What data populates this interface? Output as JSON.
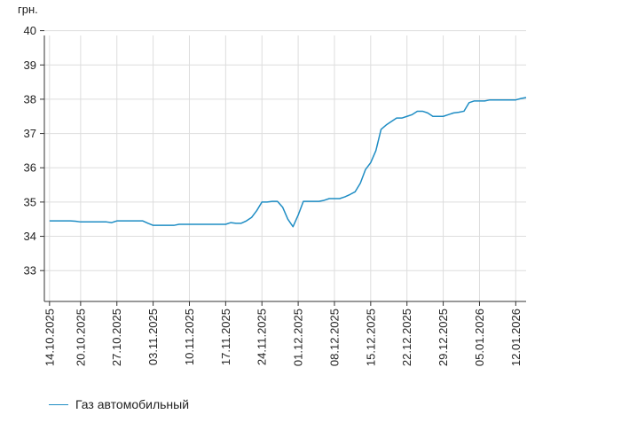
{
  "chart_data": {
    "type": "line",
    "unit_label": "грн.",
    "y_ticks": [
      33,
      34,
      35,
      36,
      37,
      38,
      39,
      40
    ],
    "ylim": [
      32.1,
      40.3
    ],
    "x_ticks": [
      "14.10.2025",
      "20.10.2025",
      "27.10.2025",
      "03.11.2025",
      "10.11.2025",
      "17.11.2025",
      "24.11.2025",
      "01.12.2025",
      "08.12.2025",
      "15.12.2025",
      "22.12.2025",
      "29.12.2025",
      "05.01.2026",
      "12.01.2026"
    ],
    "legend_position": "bottom-left",
    "grid": true,
    "series": [
      {
        "name": "Газ автомобильный",
        "color": "#1f8dc4",
        "points": [
          [
            "14.10.2025",
            34.45
          ],
          [
            "15.10.2025",
            34.45
          ],
          [
            "16.10.2025",
            34.45
          ],
          [
            "17.10.2025",
            34.45
          ],
          [
            "18.10.2025",
            34.45
          ],
          [
            "19.10.2025",
            34.44
          ],
          [
            "20.10.2025",
            34.42
          ],
          [
            "21.10.2025",
            34.42
          ],
          [
            "22.10.2025",
            34.42
          ],
          [
            "23.10.2025",
            34.42
          ],
          [
            "24.10.2025",
            34.42
          ],
          [
            "25.10.2025",
            34.42
          ],
          [
            "26.10.2025",
            34.4
          ],
          [
            "27.10.2025",
            34.45
          ],
          [
            "28.10.2025",
            34.45
          ],
          [
            "29.10.2025",
            34.45
          ],
          [
            "30.10.2025",
            34.45
          ],
          [
            "31.10.2025",
            34.45
          ],
          [
            "01.11.2025",
            34.45
          ],
          [
            "02.11.2025",
            34.38
          ],
          [
            "03.11.2025",
            34.32
          ],
          [
            "04.11.2025",
            34.32
          ],
          [
            "05.11.2025",
            34.32
          ],
          [
            "06.11.2025",
            34.32
          ],
          [
            "07.11.2025",
            34.32
          ],
          [
            "08.11.2025",
            34.35
          ],
          [
            "09.11.2025",
            34.35
          ],
          [
            "10.11.2025",
            34.35
          ],
          [
            "11.11.2025",
            34.35
          ],
          [
            "12.11.2025",
            34.35
          ],
          [
            "13.11.2025",
            34.35
          ],
          [
            "14.11.2025",
            34.35
          ],
          [
            "15.11.2025",
            34.35
          ],
          [
            "16.11.2025",
            34.35
          ],
          [
            "17.11.2025",
            34.35
          ],
          [
            "18.11.2025",
            34.4
          ],
          [
            "19.11.2025",
            34.38
          ],
          [
            "20.11.2025",
            34.38
          ],
          [
            "21.11.2025",
            34.45
          ],
          [
            "22.11.2025",
            34.55
          ],
          [
            "23.11.2025",
            34.75
          ],
          [
            "24.11.2025",
            35.0
          ],
          [
            "25.11.2025",
            35.0
          ],
          [
            "26.11.2025",
            35.02
          ],
          [
            "27.11.2025",
            35.02
          ],
          [
            "28.11.2025",
            34.85
          ],
          [
            "29.11.2025",
            34.5
          ],
          [
            "30.11.2025",
            34.28
          ],
          [
            "01.12.2025",
            34.62
          ],
          [
            "02.12.2025",
            35.02
          ],
          [
            "03.12.2025",
            35.02
          ],
          [
            "04.12.2025",
            35.02
          ],
          [
            "05.12.2025",
            35.02
          ],
          [
            "06.12.2025",
            35.05
          ],
          [
            "07.12.2025",
            35.1
          ],
          [
            "08.12.2025",
            35.1
          ],
          [
            "09.12.2025",
            35.1
          ],
          [
            "10.12.2025",
            35.15
          ],
          [
            "11.12.2025",
            35.22
          ],
          [
            "12.12.2025",
            35.3
          ],
          [
            "13.12.2025",
            35.55
          ],
          [
            "14.12.2025",
            35.95
          ],
          [
            "15.12.2025",
            36.15
          ],
          [
            "16.12.2025",
            36.5
          ],
          [
            "17.12.2025",
            37.12
          ],
          [
            "18.12.2025",
            37.25
          ],
          [
            "19.12.2025",
            37.35
          ],
          [
            "20.12.2025",
            37.45
          ],
          [
            "21.12.2025",
            37.45
          ],
          [
            "22.12.2025",
            37.5
          ],
          [
            "23.12.2025",
            37.55
          ],
          [
            "24.12.2025",
            37.65
          ],
          [
            "25.12.2025",
            37.65
          ],
          [
            "26.12.2025",
            37.6
          ],
          [
            "27.12.2025",
            37.5
          ],
          [
            "28.12.2025",
            37.5
          ],
          [
            "29.12.2025",
            37.5
          ],
          [
            "30.12.2025",
            37.55
          ],
          [
            "31.12.2025",
            37.6
          ],
          [
            "01.01.2026",
            37.62
          ],
          [
            "02.01.2026",
            37.65
          ],
          [
            "03.01.2026",
            37.9
          ],
          [
            "04.01.2026",
            37.95
          ],
          [
            "05.01.2026",
            37.95
          ],
          [
            "06.01.2026",
            37.95
          ],
          [
            "07.01.2026",
            37.98
          ],
          [
            "08.01.2026",
            37.98
          ],
          [
            "09.01.2026",
            37.98
          ],
          [
            "10.01.2026",
            37.98
          ],
          [
            "11.01.2026",
            37.98
          ],
          [
            "12.01.2026",
            37.98
          ],
          [
            "13.01.2026",
            38.02
          ],
          [
            "14.01.2026",
            38.05
          ]
        ]
      }
    ]
  }
}
